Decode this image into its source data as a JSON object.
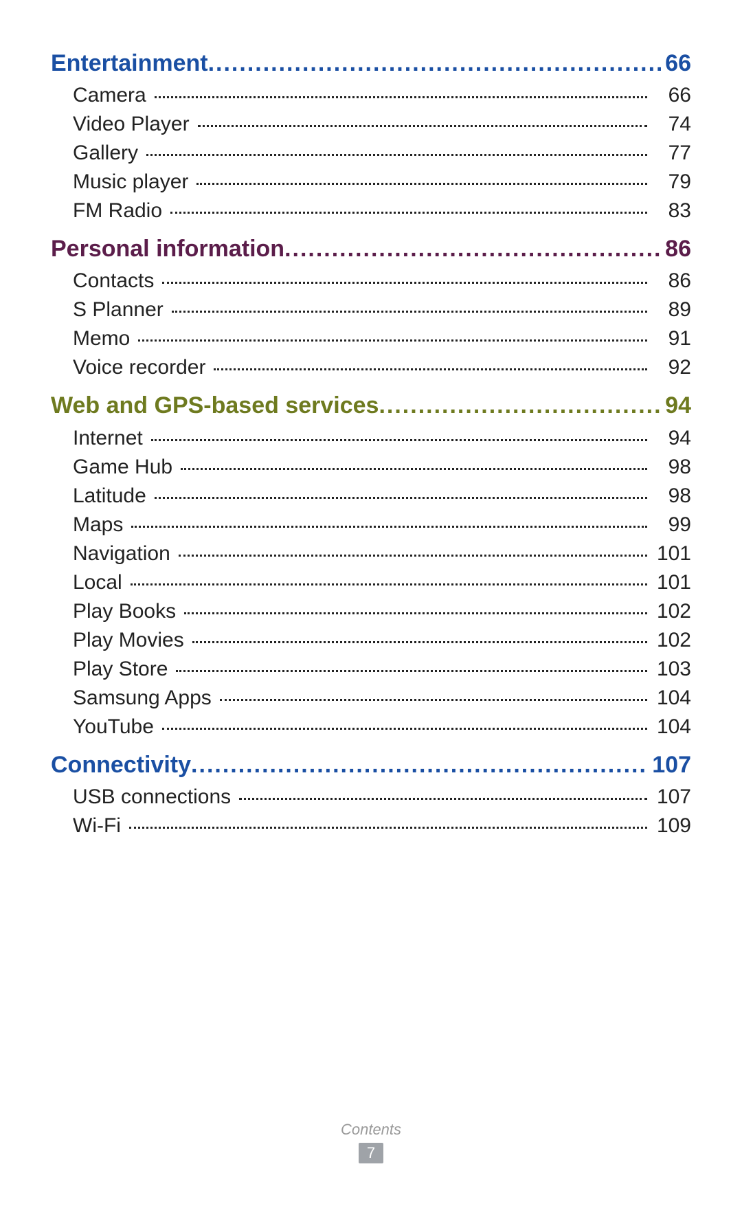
{
  "footer": {
    "label": "Contents",
    "page": "7",
    "badge_bg": "#9fa3a8",
    "label_color": "#9a9a9a"
  },
  "sections": [
    {
      "title": "Entertainment",
      "page": "66",
      "color": "#1a4fa3",
      "items": [
        {
          "title": "Camera",
          "page": "66"
        },
        {
          "title": "Video Player",
          "page": "74"
        },
        {
          "title": "Gallery",
          "page": "77"
        },
        {
          "title": "Music player",
          "page": "79"
        },
        {
          "title": "FM Radio",
          "page": "83"
        }
      ]
    },
    {
      "title": "Personal information",
      "page": "86",
      "color": "#5b1d4a",
      "items": [
        {
          "title": "Contacts",
          "page": "86"
        },
        {
          "title": "S Planner",
          "page": "89"
        },
        {
          "title": "Memo",
          "page": "91"
        },
        {
          "title": "Voice recorder",
          "page": "92"
        }
      ]
    },
    {
      "title": "Web and GPS-based services",
      "page": "94",
      "color": "#6e7a1f",
      "items": [
        {
          "title": "Internet",
          "page": "94"
        },
        {
          "title": "Game Hub",
          "page": "98"
        },
        {
          "title": "Latitude",
          "page": "98"
        },
        {
          "title": "Maps",
          "page": "99"
        },
        {
          "title": "Navigation",
          "page": "101"
        },
        {
          "title": "Local",
          "page": "101"
        },
        {
          "title": "Play Books",
          "page": "102"
        },
        {
          "title": "Play Movies",
          "page": "102"
        },
        {
          "title": "Play Store",
          "page": "103"
        },
        {
          "title": "Samsung Apps",
          "page": "104"
        },
        {
          "title": "YouTube",
          "page": "104"
        }
      ]
    },
    {
      "title": "Connectivity",
      "page": "107",
      "color": "#1a4fa3",
      "items": [
        {
          "title": "USB connections",
          "page": "107"
        },
        {
          "title": "Wi-Fi",
          "page": "109"
        }
      ]
    }
  ]
}
